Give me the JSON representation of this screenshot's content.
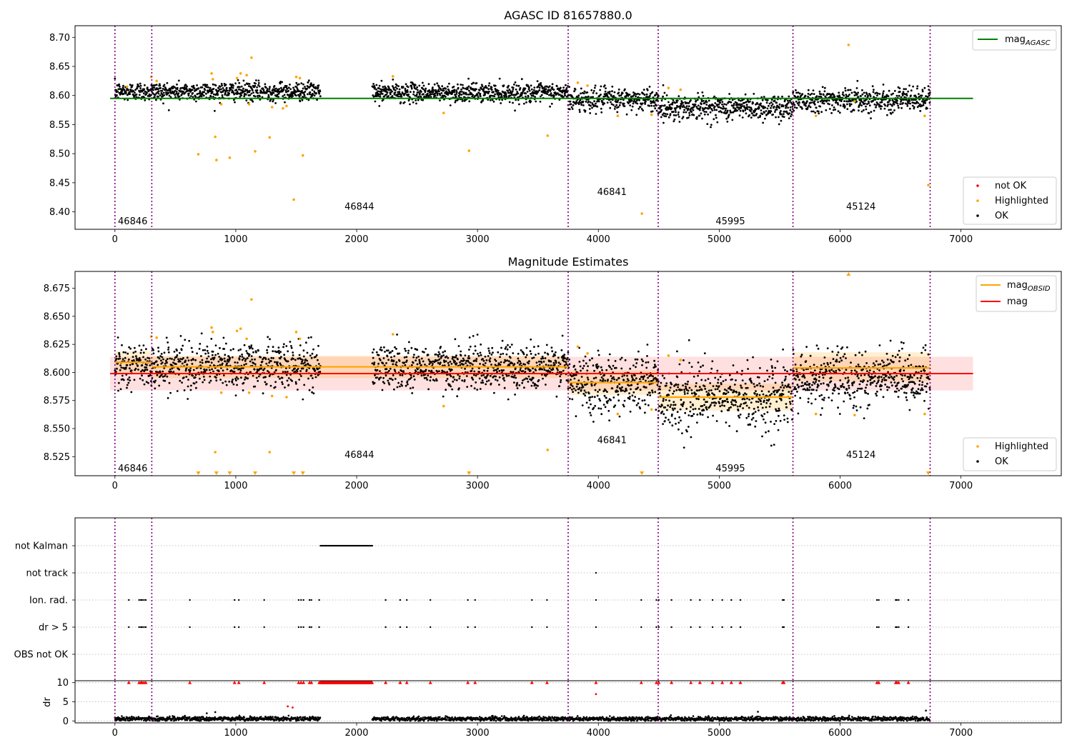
{
  "figure": {
    "title_top": "AGASC ID 81657880.0",
    "title_mid": "Magnitude Estimates"
  },
  "chart_data": [
    {
      "type": "scatter",
      "title": "AGASC ID 81657880.0",
      "xlim": [
        -330,
        7830
      ],
      "ylim": [
        8.37,
        8.72
      ],
      "x_ticks": [
        0,
        1000,
        2000,
        3000,
        4000,
        5000,
        6000,
        7000
      ],
      "y_ticks": [
        8.4,
        8.45,
        8.5,
        8.55,
        8.6,
        8.65,
        8.7
      ],
      "grid": false,
      "obsid_boundaries": [
        0,
        305,
        3750,
        4495,
        5610,
        6745
      ],
      "obsid_labels": [
        {
          "label": "46846",
          "x": 25,
          "y": 8.385
        },
        {
          "label": "46844",
          "x": 1900,
          "y": 8.41
        },
        {
          "label": "46841",
          "x": 3990,
          "y": 8.435
        },
        {
          "label": "45995",
          "x": 4970,
          "y": 8.385
        },
        {
          "label": "45124",
          "x": 6050,
          "y": 8.41
        }
      ],
      "mag_agasc": {
        "value": 8.595,
        "x_range": [
          -40,
          7100
        ],
        "color": "#008000"
      },
      "series": [
        {
          "name": "not OK",
          "color": "#ff0000",
          "points": []
        },
        {
          "name": "Highlighted",
          "color": "#ffa500",
          "points": [
            [
              100,
              8.615
            ],
            [
              300,
              8.632
            ],
            [
              345,
              8.625
            ],
            [
              690,
              8.499
            ],
            [
              800,
              8.638
            ],
            [
              810,
              8.628
            ],
            [
              830,
              8.529
            ],
            [
              840,
              8.489
            ],
            [
              880,
              8.585
            ],
            [
              950,
              8.493
            ],
            [
              1010,
              8.63
            ],
            [
              1040,
              8.638
            ],
            [
              1090,
              8.635
            ],
            [
              1110,
              8.585
            ],
            [
              1130,
              8.665
            ],
            [
              1160,
              8.504
            ],
            [
              1280,
              8.528
            ],
            [
              1300,
              8.58
            ],
            [
              1390,
              8.578
            ],
            [
              1420,
              8.582
            ],
            [
              1480,
              8.421
            ],
            [
              1500,
              8.632
            ],
            [
              1530,
              8.63
            ],
            [
              1555,
              8.497
            ],
            [
              2300,
              8.633
            ],
            [
              2720,
              8.57
            ],
            [
              2930,
              8.505
            ],
            [
              3580,
              8.531
            ],
            [
              3830,
              8.622
            ],
            [
              3910,
              8.617
            ],
            [
              4160,
              8.565
            ],
            [
              4360,
              8.397
            ],
            [
              4440,
              8.567
            ],
            [
              4580,
              8.613
            ],
            [
              4680,
              8.61
            ],
            [
              5800,
              8.565
            ],
            [
              6070,
              8.687
            ],
            [
              6120,
              8.59
            ],
            [
              6700,
              8.565
            ],
            [
              6730,
              8.446
            ]
          ]
        }
      ],
      "ok_segments": [
        {
          "x": [
            0,
            1700
          ],
          "mean": 8.607,
          "std": 0.008
        },
        {
          "x": [
            2130,
            3750
          ],
          "mean": 8.605,
          "std": 0.008
        },
        {
          "x": [
            3750,
            4495
          ],
          "mean": 8.593,
          "std": 0.01
        },
        {
          "x": [
            4495,
            5610
          ],
          "mean": 8.58,
          "std": 0.011
        },
        {
          "x": [
            5610,
            6745
          ],
          "mean": 8.593,
          "std": 0.01
        }
      ],
      "legends": [
        {
          "position": "top-right",
          "entries": [
            {
              "label": "mag",
              "subscript": "AGASC",
              "kind": "line",
              "color": "#008000"
            }
          ]
        },
        {
          "position": "bottom-right",
          "entries": [
            {
              "label": "not OK",
              "kind": "dot",
              "color": "#ff0000"
            },
            {
              "label": "Highlighted",
              "kind": "dot",
              "color": "#ffa500"
            },
            {
              "label": "OK",
              "kind": "dot",
              "color": "#000000"
            }
          ]
        }
      ]
    },
    {
      "type": "scatter",
      "title": "Magnitude Estimates",
      "xlim": [
        -330,
        7830
      ],
      "ylim": [
        8.508,
        8.69
      ],
      "x_ticks": [
        0,
        1000,
        2000,
        3000,
        4000,
        5000,
        6000,
        7000
      ],
      "y_ticks": [
        8.525,
        8.55,
        8.575,
        8.6,
        8.625,
        8.65,
        8.675
      ],
      "grid": false,
      "obsid_boundaries": [
        0,
        305,
        3750,
        4495,
        5610,
        6745
      ],
      "obsid_labels": [
        {
          "label": "46846",
          "x": 25,
          "y": 8.515
        },
        {
          "label": "46844",
          "x": 1900,
          "y": 8.527
        },
        {
          "label": "46841",
          "x": 3990,
          "y": 8.54
        },
        {
          "label": "45995",
          "x": 4970,
          "y": 8.515
        },
        {
          "label": "45124",
          "x": 6050,
          "y": 8.527
        }
      ],
      "mag": {
        "value": 8.599,
        "band": [
          8.584,
          8.614
        ],
        "x_range": [
          -40,
          7100
        ],
        "color": "#ff0000"
      },
      "mag_obsid": [
        {
          "x": [
            0,
            305
          ],
          "value": 8.609,
          "band": [
            8.599,
            8.619
          ]
        },
        {
          "x": [
            305,
            3750
          ],
          "value": 8.605,
          "band": [
            8.595,
            8.615
          ]
        },
        {
          "x": [
            3750,
            4495
          ],
          "value": 8.591,
          "band": [
            8.58,
            8.602
          ]
        },
        {
          "x": [
            4495,
            5610
          ],
          "value": 8.578,
          "band": [
            8.566,
            8.59
          ]
        },
        {
          "x": [
            5610,
            6745
          ],
          "value": 8.604,
          "band": [
            8.592,
            8.618
          ]
        }
      ],
      "series": [
        {
          "name": "Highlighted",
          "color": "#ffa500",
          "points": [
            [
              300,
              8.632
            ],
            [
              345,
              8.631
            ],
            [
              800,
              8.64
            ],
            [
              810,
              8.636
            ],
            [
              830,
              8.529
            ],
            [
              880,
              8.582
            ],
            [
              1010,
              8.637
            ],
            [
              1040,
              8.639
            ],
            [
              1090,
              8.63
            ],
            [
              1110,
              8.582
            ],
            [
              1130,
              8.665
            ],
            [
              1280,
              8.529
            ],
            [
              1300,
              8.579
            ],
            [
              1420,
              8.578
            ],
            [
              1500,
              8.636
            ],
            [
              1530,
              8.63
            ],
            [
              2300,
              8.634
            ],
            [
              2720,
              8.57
            ],
            [
              3580,
              8.531
            ],
            [
              3830,
              8.623
            ],
            [
              3910,
              8.617
            ],
            [
              4160,
              8.563
            ],
            [
              4440,
              8.567
            ],
            [
              4580,
              8.615
            ],
            [
              4680,
              8.611
            ],
            [
              5800,
              8.563
            ],
            [
              6120,
              8.562
            ],
            [
              6700,
              8.563
            ]
          ]
        },
        {
          "name": "Highlighted (below axis)",
          "color": "#ffa500",
          "marker": "triangle-down",
          "x": [
            690,
            840,
            950,
            1160,
            1480,
            1555,
            2930,
            4360,
            6730
          ]
        },
        {
          "name": "Highlighted (above axis)",
          "color": "#ffa500",
          "marker": "triangle-up",
          "x": [
            6070
          ]
        }
      ],
      "ok_segments": [
        {
          "x": [
            0,
            1700
          ],
          "mean": 8.606,
          "std": 0.01
        },
        {
          "x": [
            2130,
            3750
          ],
          "mean": 8.605,
          "std": 0.01
        },
        {
          "x": [
            3750,
            4495
          ],
          "mean": 8.591,
          "std": 0.013
        },
        {
          "x": [
            4495,
            5610
          ],
          "mean": 8.578,
          "std": 0.014
        },
        {
          "x": [
            5610,
            6745
          ],
          "mean": 8.595,
          "std": 0.013
        }
      ],
      "legends": [
        {
          "position": "top-right",
          "entries": [
            {
              "label": "mag",
              "subscript": "OBSID",
              "kind": "line",
              "color": "#ffa500"
            },
            {
              "label": "mag",
              "subscript": "",
              "kind": "line",
              "color": "#ff0000"
            }
          ]
        },
        {
          "position": "bottom-right",
          "entries": [
            {
              "label": "Highlighted",
              "kind": "dot",
              "color": "#ffa500"
            },
            {
              "label": "OK",
              "kind": "dot",
              "color": "#000000"
            }
          ]
        }
      ]
    },
    {
      "type": "scatter",
      "title": "",
      "xlim": [
        -330,
        7830
      ],
      "categories": [
        "not Kalman",
        "not track",
        "Ion. rad.",
        "dr > 5",
        "OBS not OK"
      ],
      "grid": "dotted horizontal",
      "obsid_boundaries": [
        0,
        305,
        3750,
        4495,
        5610,
        6745
      ],
      "flags": {
        "not Kalman": {
          "range": [
            1700,
            2130
          ]
        },
        "not track": {
          "x": [
            3980
          ]
        },
        "Ion. rad.": {
          "x": [
            115,
            200,
            215,
            225,
            240,
            255,
            620,
            990,
            1025,
            1235,
            1520,
            1540,
            1560,
            1610,
            1625,
            1690,
            2240,
            2360,
            2415,
            2610,
            2920,
            2980,
            3450,
            3575,
            3980,
            4355,
            4480,
            4500,
            4605,
            4765,
            4840,
            4945,
            5025,
            5100,
            5175,
            5525,
            5535,
            6305,
            6320,
            6460,
            6470,
            6485,
            6565
          ]
        },
        "dr > 5": {
          "x": [
            115,
            200,
            215,
            225,
            240,
            255,
            620,
            990,
            1025,
            1235,
            1520,
            1540,
            1560,
            1610,
            1625,
            1690,
            2240,
            2360,
            2415,
            2610,
            2920,
            2980,
            3450,
            3575,
            3980,
            4355,
            4480,
            4500,
            4605,
            4765,
            4840,
            4945,
            5025,
            5100,
            5175,
            5525,
            5535,
            6305,
            6320,
            6460,
            6470,
            6485,
            6565
          ]
        },
        "OBS not OK": {
          "x": []
        }
      }
    },
    {
      "type": "scatter",
      "title": "",
      "ylabel": "dr",
      "xlim": [
        -330,
        7830
      ],
      "ylim": [
        -0.5,
        10.5
      ],
      "x_ticks": [
        0,
        1000,
        2000,
        3000,
        4000,
        5000,
        6000,
        7000
      ],
      "y_ticks": [
        0,
        5,
        10
      ],
      "grid": "dotted horizontal",
      "obsid_boundaries": [
        0,
        305,
        3750,
        4495,
        5610,
        6745
      ],
      "capped_at": 10,
      "capped_points": {
        "color": "#ff0000",
        "x": [
          115,
          200,
          215,
          225,
          240,
          255,
          620,
          990,
          1025,
          1235,
          1520,
          1540,
          1560,
          1610,
          1625,
          1690,
          2240,
          2360,
          2415,
          2610,
          2920,
          2980,
          3450,
          3575,
          3980,
          4355,
          4480,
          4500,
          4605,
          4765,
          4840,
          4945,
          5025,
          5100,
          5175,
          5525,
          5535,
          6305,
          6320,
          6460,
          6470,
          6485,
          6565
        ],
        "range": [
          1700,
          2130
        ]
      },
      "red_points": [
        [
          1430,
          3.8
        ],
        [
          1470,
          3.5
        ],
        [
          3980,
          7.0
        ]
      ],
      "black_points": [
        [
          760,
          2.0
        ],
        [
          830,
          2.3
        ],
        [
          5320,
          2.4
        ],
        [
          6710,
          2.7
        ],
        [
          1030,
          1.4
        ],
        [
          3120,
          1.3
        ],
        [
          4600,
          1.5
        ]
      ]
    }
  ]
}
